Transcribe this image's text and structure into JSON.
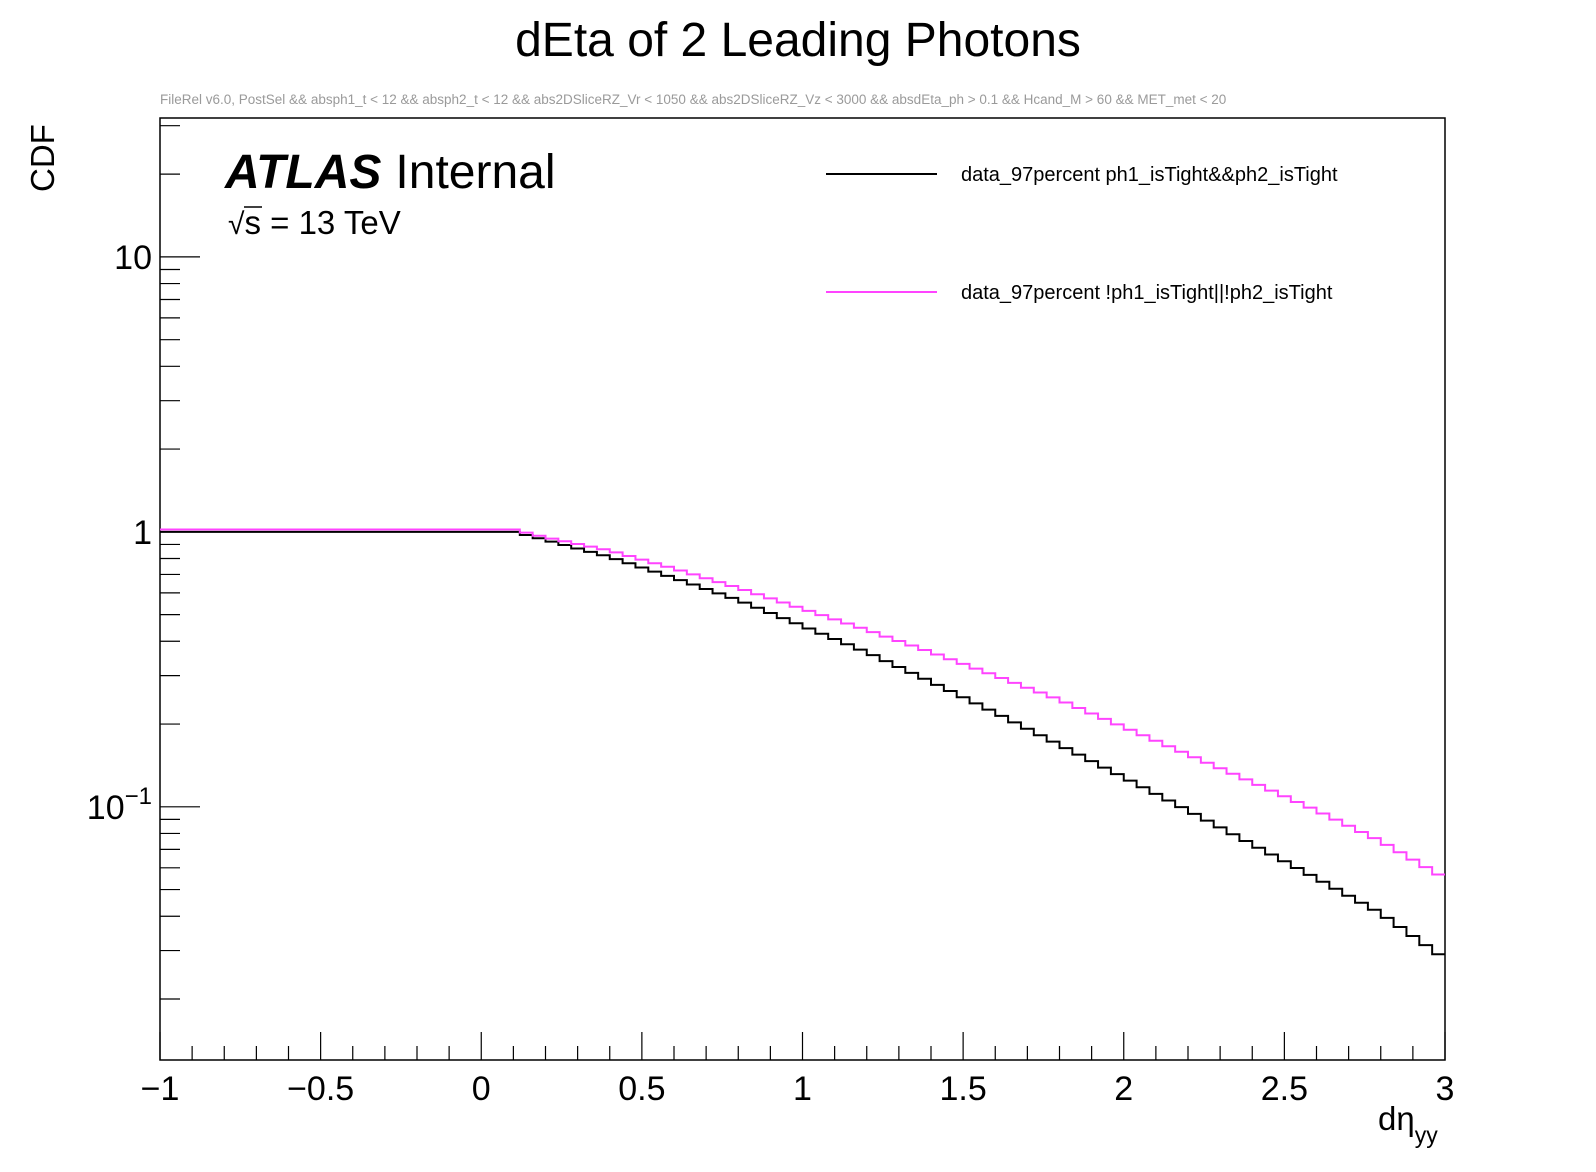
{
  "chart_data": {
    "type": "line",
    "title": "dEta of 2 Leading Photons",
    "subtitle": "FileRel v6.0, PostSel &&  absph1_t < 12 && absph2_t < 12 && abs2DSliceRZ_Vr < 1050 && abs2DSliceRZ_Vz < 3000 && absdEta_ph > 0.1 && Hcand_M > 60 && MET_met < 20",
    "xlabel": "dη",
    "xlabel_sub": "yy",
    "ylabel": "CDF",
    "y_scale": "log",
    "xlim": [
      -1,
      3
    ],
    "ylim": [
      0.012,
      32
    ],
    "x_ticks": [
      -1,
      -0.5,
      0,
      0.5,
      1,
      1.5,
      2,
      2.5,
      3
    ],
    "x_tick_labels": [
      "−1",
      "−0.5",
      "0",
      "0.5",
      "1",
      "1.5",
      "2",
      "2.5",
      "3"
    ],
    "y_major_ticks": [
      {
        "value": 10,
        "base": "10",
        "exp": ""
      },
      {
        "value": 1,
        "base": "1",
        "exp": ""
      },
      {
        "value": 0.1,
        "base": "10",
        "exp": "−1"
      }
    ],
    "annotation": {
      "atlas": "ATLAS",
      "internal": "Internal",
      "sqrt": "√",
      "energy": "s = 13 TeV"
    },
    "legend_position": "top-right",
    "series": [
      {
        "name": "data_97percent ph1_isTight&&ph2_isTight",
        "color": "#000000",
        "points": [
          [
            -1,
            1.0
          ],
          [
            0.1,
            1.0
          ],
          [
            0.2,
            0.935
          ],
          [
            0.4,
            0.81
          ],
          [
            0.6,
            0.68
          ],
          [
            0.8,
            0.565
          ],
          [
            1.0,
            0.455
          ],
          [
            1.2,
            0.365
          ],
          [
            1.4,
            0.285
          ],
          [
            1.6,
            0.22
          ],
          [
            1.8,
            0.168
          ],
          [
            2.0,
            0.128
          ],
          [
            2.2,
            0.097
          ],
          [
            2.4,
            0.073
          ],
          [
            2.6,
            0.055
          ],
          [
            2.8,
            0.041
          ],
          [
            3.0,
            0.028
          ]
        ]
      },
      {
        "name": "data_97percent !ph1_isTight||!ph2_isTight",
        "color": "#ff44ff",
        "points": [
          [
            -1,
            1.02
          ],
          [
            0.1,
            1.02
          ],
          [
            0.2,
            0.955
          ],
          [
            0.4,
            0.855
          ],
          [
            0.6,
            0.735
          ],
          [
            0.8,
            0.625
          ],
          [
            1.0,
            0.525
          ],
          [
            1.2,
            0.44
          ],
          [
            1.4,
            0.365
          ],
          [
            1.6,
            0.3
          ],
          [
            1.8,
            0.245
          ],
          [
            2.0,
            0.195
          ],
          [
            2.2,
            0.155
          ],
          [
            2.4,
            0.123
          ],
          [
            2.6,
            0.097
          ],
          [
            2.8,
            0.075
          ],
          [
            3.0,
            0.055
          ]
        ]
      }
    ]
  }
}
